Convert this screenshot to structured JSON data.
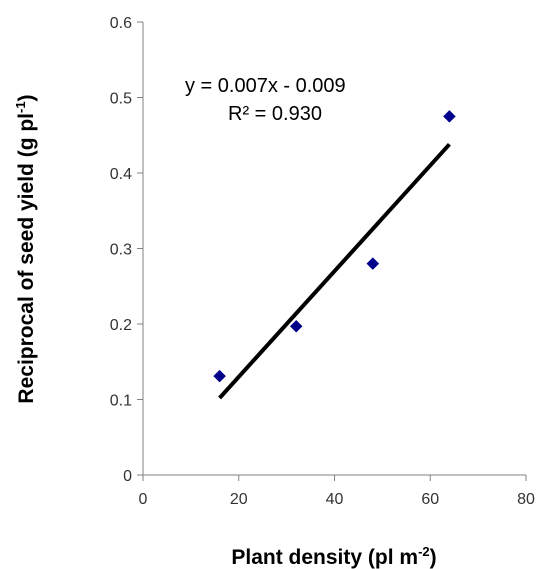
{
  "chart_data": {
    "type": "scatter",
    "title": "",
    "xlabel": "Plant density (pl m",
    "xlabel_sup": "-2",
    "xlabel_end": ")",
    "ylabel": "Reciprocal of seed yield (g pl",
    "ylabel_sup": "-1",
    "ylabel_end": ")",
    "xlim": [
      0,
      80
    ],
    "ylim": [
      0,
      0.6
    ],
    "x_ticks": [
      "0",
      "20",
      "40",
      "60",
      "80"
    ],
    "y_ticks": [
      "0",
      "0.1",
      "0.2",
      "0.3",
      "0.4",
      "0.5",
      "0.6"
    ],
    "grid": false,
    "series": [
      {
        "marker": "diamond",
        "color": "#00008b",
        "points": [
          {
            "x": 16,
            "y": 0.131
          },
          {
            "x": 32,
            "y": 0.197
          },
          {
            "x": 48,
            "y": 0.28
          },
          {
            "x": 64,
            "y": 0.475
          }
        ]
      }
    ],
    "trendline": {
      "type": "linear",
      "color": "#000000",
      "x_range": [
        16,
        64
      ],
      "y_range": [
        0.102,
        0.438
      ]
    },
    "annotations": {
      "equation": "y = 0.007x - 0.009",
      "r_squared": "R² = 0.930"
    }
  }
}
